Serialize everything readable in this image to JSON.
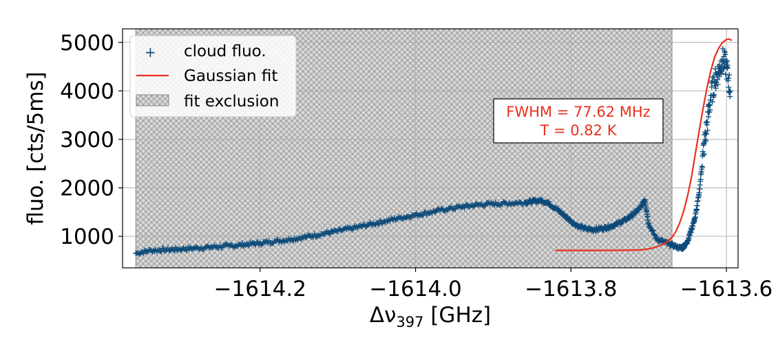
{
  "chart_data": {
    "type": "scatter",
    "xlabel_main": "Δν",
    "xlabel_sub": "397",
    "xlabel_unit": " [GHz]",
    "ylabel": "fluo. [cts/5ms]",
    "xlim": [
      -1614.377,
      -1613.585
    ],
    "ylim": [
      350,
      5280
    ],
    "xticks": [
      -1614.2,
      -1614.0,
      -1613.8,
      -1613.6
    ],
    "xtick_labels": [
      "−1614.2",
      "−1614.0",
      "−1613.8",
      "−1613.6"
    ],
    "yticks": [
      1000,
      2000,
      3000,
      4000,
      5000
    ],
    "ytick_labels": [
      "1000",
      "2000",
      "3000",
      "4000",
      "5000"
    ],
    "grid": true,
    "legend_position": "upper-left",
    "colors": {
      "data": "#0b4a7a",
      "fit": "#e8301a",
      "hatch_fill": "#d8d8d8",
      "hatch_line": "#9a9a9a"
    },
    "legend": [
      {
        "label": "cloud fluo.",
        "kind": "marker"
      },
      {
        "label": "Gaussian fit",
        "kind": "line"
      },
      {
        "label": "fit exclusion",
        "kind": "hatch"
      }
    ],
    "annotation": {
      "lines": [
        "FWHM = 77.62 MHz",
        "T = 0.82 K"
      ],
      "color": "#e8301a"
    },
    "exclusion_region": [
      -1614.36,
      -1613.67
    ],
    "series": [
      {
        "name": "cloud fluo.",
        "marker": "+",
        "x": [
          -1614.36,
          -1614.34,
          -1614.32,
          -1614.3,
          -1614.28,
          -1614.26,
          -1614.24,
          -1614.22,
          -1614.2,
          -1614.18,
          -1614.16,
          -1614.14,
          -1614.12,
          -1614.1,
          -1614.08,
          -1614.06,
          -1614.04,
          -1614.02,
          -1614.0,
          -1613.98,
          -1613.96,
          -1613.94,
          -1613.92,
          -1613.9,
          -1613.88,
          -1613.86,
          -1613.85,
          -1613.84,
          -1613.83,
          -1613.82,
          -1613.81,
          -1613.8,
          -1613.79,
          -1613.78,
          -1613.77,
          -1613.76,
          -1613.75,
          -1613.74,
          -1613.73,
          -1613.72,
          -1613.71,
          -1613.705,
          -1613.7,
          -1613.69,
          -1613.68,
          -1613.67,
          -1613.66,
          -1613.655,
          -1613.65,
          -1613.645,
          -1613.64,
          -1613.635,
          -1613.63,
          -1613.625,
          -1613.62,
          -1613.615,
          -1613.61,
          -1613.605,
          -1613.6,
          -1613.595
        ],
        "y": [
          650,
          710,
          720,
          740,
          760,
          780,
          800,
          830,
          860,
          900,
          940,
          990,
          1050,
          1110,
          1170,
          1240,
          1310,
          1380,
          1440,
          1500,
          1560,
          1610,
          1650,
          1670,
          1680,
          1700,
          1720,
          1740,
          1700,
          1580,
          1450,
          1310,
          1200,
          1150,
          1140,
          1160,
          1200,
          1260,
          1340,
          1450,
          1600,
          1760,
          1250,
          950,
          880,
          820,
          760,
          780,
          900,
          1150,
          1400,
          1900,
          2700,
          3300,
          3900,
          4200,
          4400,
          4650,
          4500,
          4000
        ]
      }
    ],
    "fit": {
      "name": "Gaussian fit",
      "x": [
        -1613.82,
        -1613.79,
        -1613.76,
        -1613.73,
        -1613.71,
        -1613.7,
        -1613.69,
        -1613.68,
        -1613.675,
        -1613.67,
        -1613.665,
        -1613.66,
        -1613.655,
        -1613.65,
        -1613.645,
        -1613.64,
        -1613.635,
        -1613.63,
        -1613.625,
        -1613.62,
        -1613.615,
        -1613.61,
        -1613.605,
        -1613.6,
        -1613.597,
        -1613.593
      ],
      "y": [
        710,
        710,
        710,
        712,
        720,
        740,
        780,
        850,
        900,
        980,
        1100,
        1280,
        1520,
        1830,
        2220,
        2700,
        3180,
        3640,
        4060,
        4420,
        4700,
        4880,
        5000,
        5060,
        5070,
        5040
      ]
    }
  }
}
